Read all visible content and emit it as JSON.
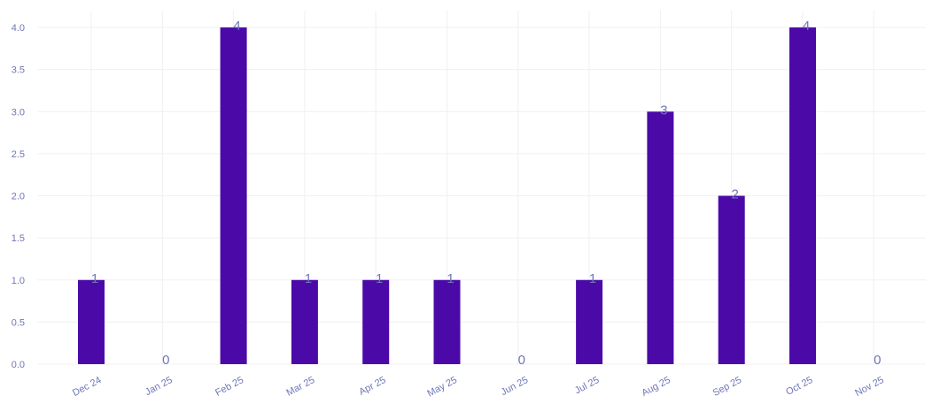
{
  "chart_data": {
    "type": "bar",
    "categories": [
      "Dec 24",
      "Jan 25",
      "Feb 25",
      "Mar 25",
      "Apr 25",
      "May 25",
      "Jun 25",
      "Jul 25",
      "Aug 25",
      "Sep 25",
      "Oct 25",
      "Nov 25"
    ],
    "values": [
      1,
      0,
      4,
      1,
      1,
      1,
      0,
      1,
      3,
      2,
      4,
      0
    ],
    "ylim": [
      0,
      4.2
    ],
    "yticks": [
      "0.0",
      "0.5",
      "1.0",
      "1.5",
      "2.0",
      "2.5",
      "3.0",
      "3.5",
      "4.0"
    ],
    "grid": true,
    "bar_color": "#4b0aa8",
    "label_color": "#6f76b8",
    "gridline_color": "#f0f0f0"
  }
}
